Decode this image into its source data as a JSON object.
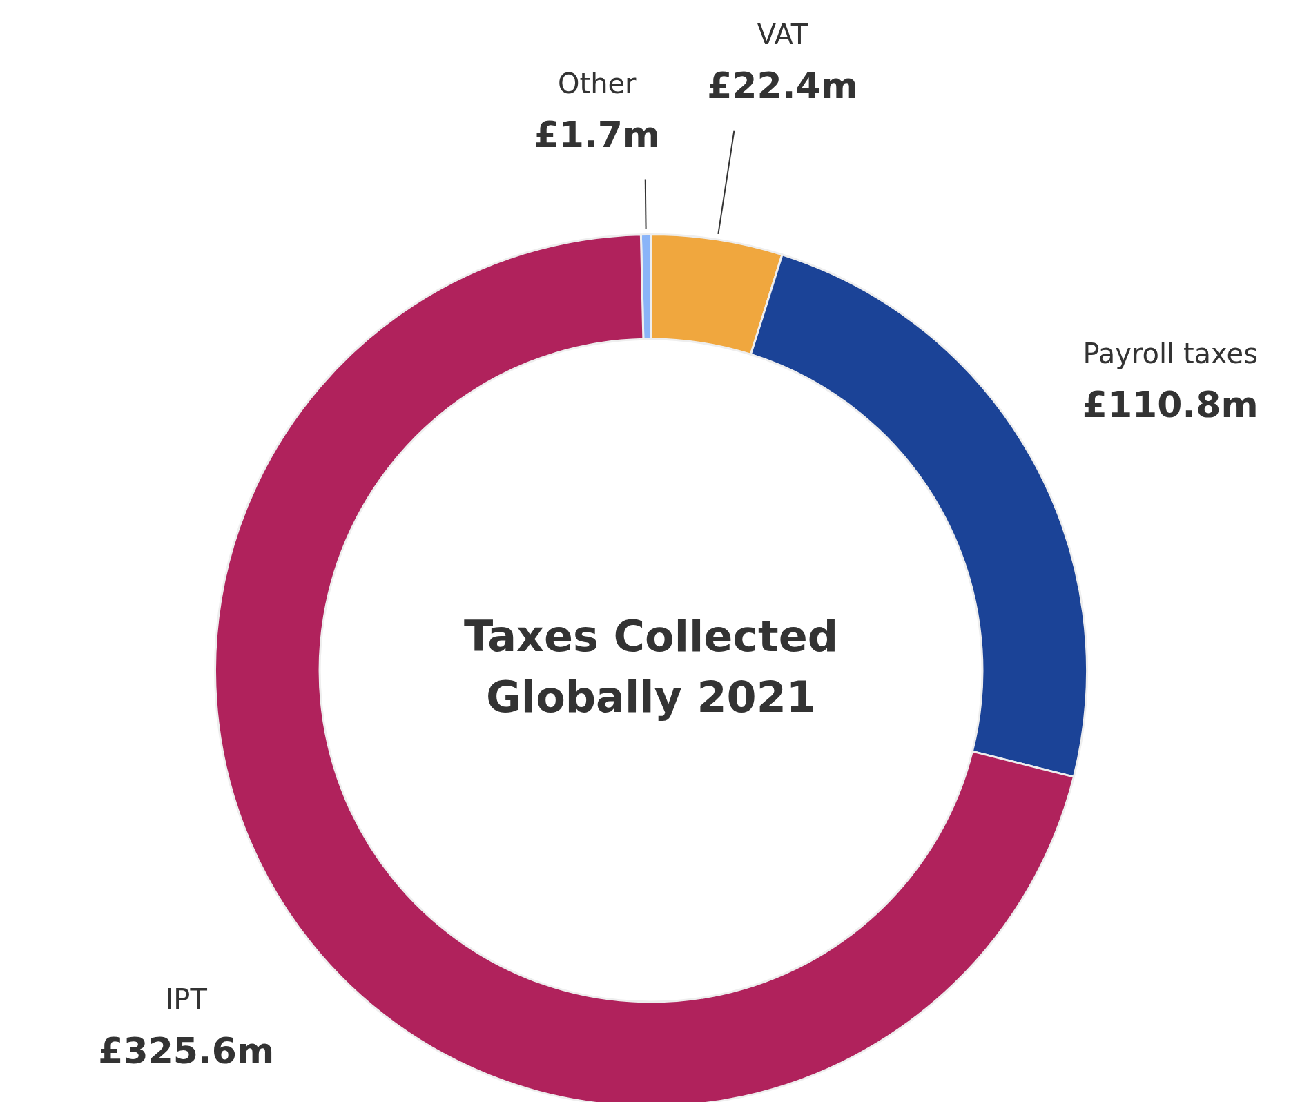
{
  "chart_data": {
    "type": "donut",
    "title": "Taxes Collected Globally 2021",
    "categories": [
      "Other",
      "VAT",
      "Payroll taxes",
      "IPT"
    ],
    "values": [
      1.7,
      22.4,
      110.8,
      325.6
    ],
    "value_labels": [
      "£1.7m",
      "£22.4m",
      "£110.8m",
      "£325.6m"
    ],
    "colors": [
      "#8ab4f8",
      "#f0a73e",
      "#1b4397",
      "#b0225c"
    ],
    "legend": false
  }
}
